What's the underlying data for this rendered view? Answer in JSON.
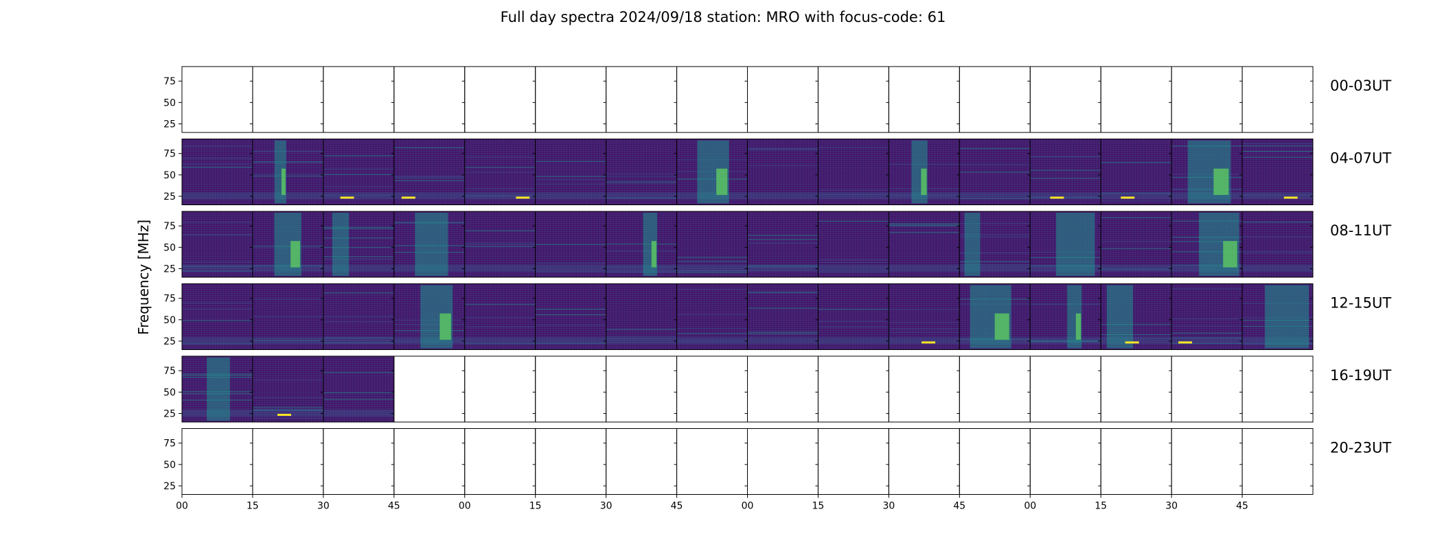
{
  "chart_data": {
    "type": "heatmap",
    "title": "Full day spectra 2024/09/18 station: MRO with focus-code: 61",
    "ylabel": "Frequency [MHz]",
    "xlabel": "",
    "ylim": [
      15,
      92
    ],
    "y_ticks": [
      25,
      50,
      75
    ],
    "x_ticks": [
      "00",
      "15",
      "30",
      "45",
      "00",
      "15",
      "30",
      "45",
      "00",
      "15",
      "30",
      "45",
      "00",
      "15",
      "30",
      "45"
    ],
    "row_labels": [
      "00-03UT",
      "04-07UT",
      "08-11UT",
      "12-15UT",
      "16-19UT",
      "20-23UT"
    ],
    "panels_per_row": 16,
    "colormap": [
      "#440154",
      "#3b528b",
      "#21918c",
      "#5ec962",
      "#fde725"
    ],
    "rows": [
      {
        "label": "00-03UT",
        "filled_panels": 0
      },
      {
        "label": "04-07UT",
        "filled_panels": 16
      },
      {
        "label": "08-11UT",
        "filled_panels": 16
      },
      {
        "label": "12-15UT",
        "filled_panels": 16
      },
      {
        "label": "16-19UT",
        "filled_panels": 3
      },
      {
        "label": "20-23UT",
        "filled_panels": 0
      }
    ],
    "grid": false,
    "legend": "none"
  }
}
